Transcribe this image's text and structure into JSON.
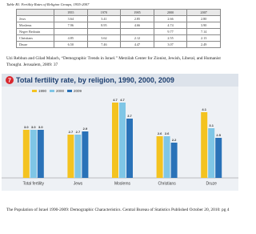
{
  "table": {
    "title": "Table B1. Fertility Rates of Religion Groups, 1955-2007",
    "header": [
      "1955",
      "1970",
      "1985",
      "2000",
      "2007"
    ],
    "rows": [
      [
        "Jews",
        "3.64",
        "3.41",
        "2.85",
        "2.66",
        "2.80"
      ],
      [
        "Moslems",
        "7.96",
        "8.95",
        "4.66",
        "4.74",
        "3.90"
      ],
      [
        "Negev Bedouin",
        null,
        null,
        null,
        "9.77",
        "7.14"
      ],
      [
        "Christians",
        "4.85",
        "3.62",
        "2.12",
        "2.55",
        "2.13"
      ],
      [
        "Druze",
        "6.50",
        "7.46",
        "4.47",
        "3.07",
        "2.49"
      ]
    ]
  },
  "citation": "Uzi Rebhun and Gilad Malach, “Demographic Trends in Israel.” Metzilah Center for Zionist, Jewish, Liberal, and Humanist Thought. Jerusalem, 2009: 37",
  "chart_data": {
    "type": "bar",
    "number": "7",
    "title": "Total fertility rate, by religion, 1990, 2000, 2009",
    "categories": [
      "Total fertility",
      "Jews",
      "Moslems",
      "Christians",
      "Druze"
    ],
    "series": [
      {
        "name": "1990",
        "color": "#f4c320",
        "values": [
          3.0,
          2.7,
          4.7,
          2.6,
          4.1
        ],
        "value_labels": [
          "3.0",
          "2.7",
          "4.7",
          "2.6",
          "4.1"
        ]
      },
      {
        "name": "2000",
        "color": "#7fc6e6",
        "values": [
          3.0,
          2.7,
          4.7,
          2.6,
          3.1
        ],
        "value_labels": [
          "3.0",
          "2.7",
          "4.7",
          "2.6",
          "3.1"
        ]
      },
      {
        "name": "2009",
        "color": "#2a72b8",
        "values": [
          3.0,
          2.9,
          3.7,
          2.2,
          2.5
        ],
        "value_labels": [
          "3.0",
          "2.9",
          "3.7",
          "2.2",
          "2.5"
        ]
      }
    ]
  },
  "caption": "The Population of Israel 1990-2009: Demographic Characteristics. Central Bureau of Statistics Published October 20, 2010: pg 4"
}
